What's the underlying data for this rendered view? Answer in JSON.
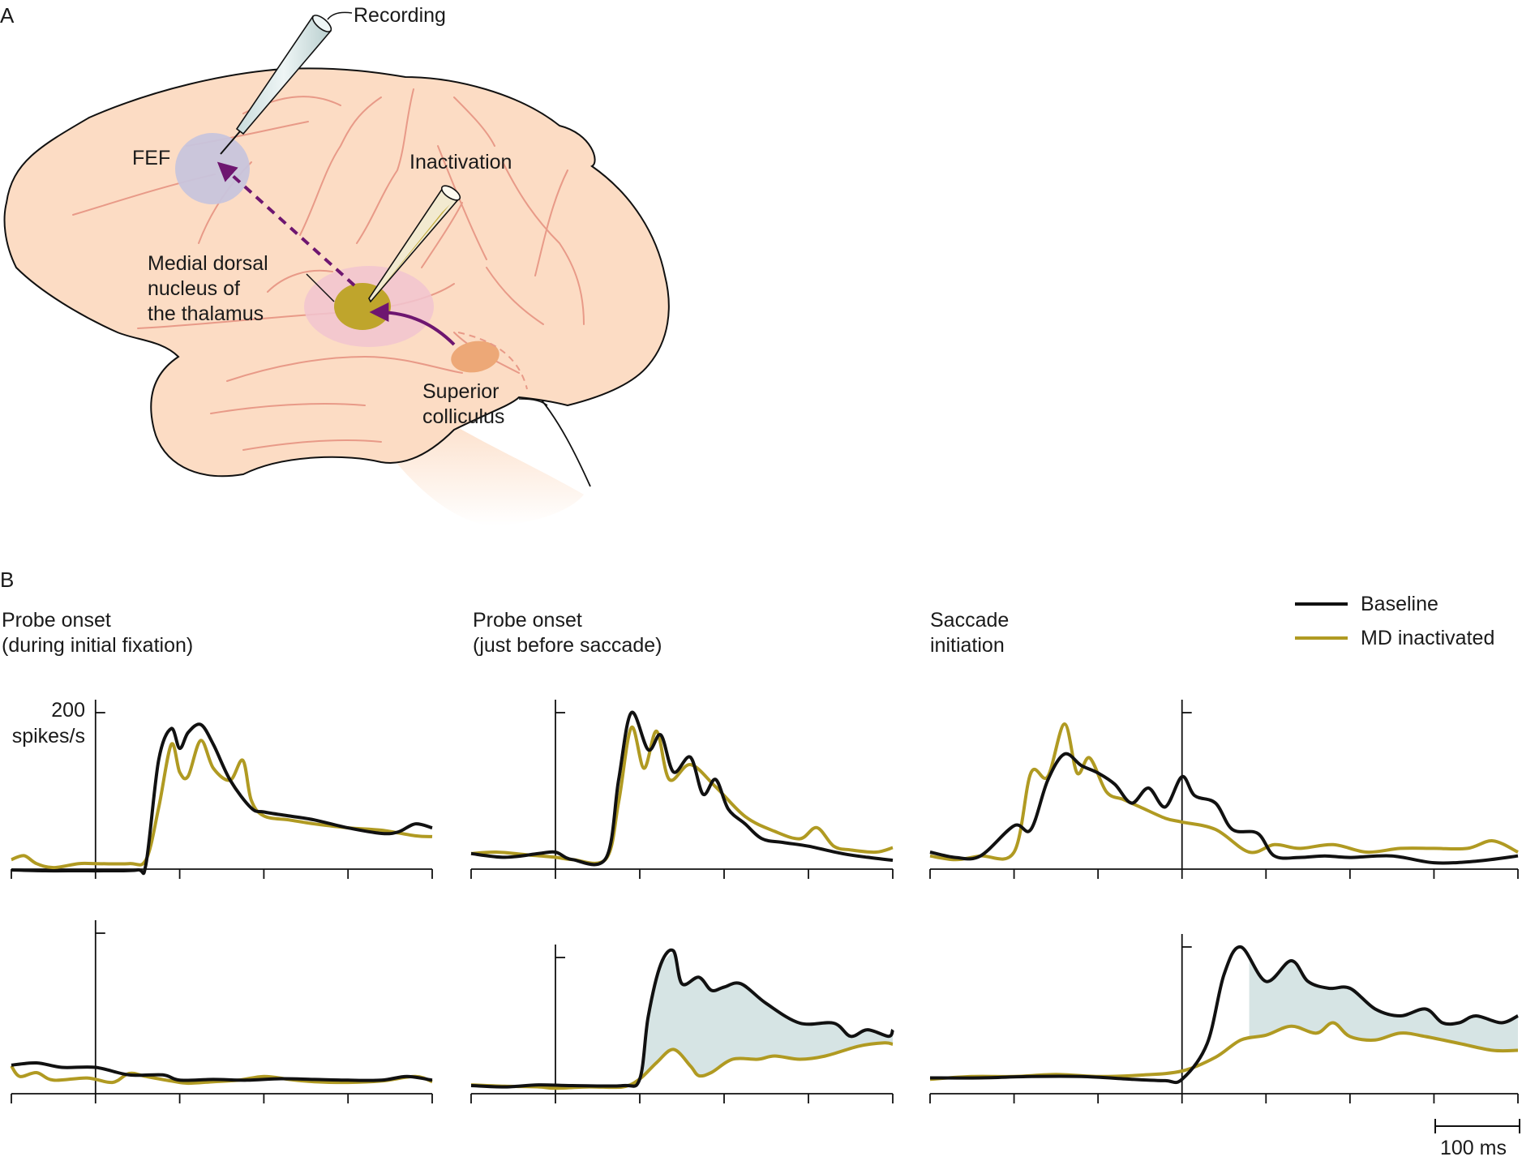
{
  "panel_a": {
    "panel_label": "A",
    "labels": {
      "recording": "Recording",
      "fef": "FEF",
      "inactivation": "Inactivation",
      "md_line1": "Medial dorsal",
      "md_line2": "nucleus of",
      "md_line3": "the thalamus",
      "sc_line1": "Superior",
      "sc_line2": "colliculus"
    },
    "colors": {
      "brain": "#fcdcc4",
      "fef": "#c8c4dc",
      "md_halo": "#f1c4d0",
      "md_core": "#bfa52c",
      "sc": "#eda877",
      "pathway": "#6e1670"
    }
  },
  "panel_b": {
    "panel_label": "B",
    "legend": {
      "baseline": "Baseline",
      "md": "MD inactivated"
    },
    "columns": [
      {
        "title1": "Probe onset",
        "title2": "(during initial fixation)"
      },
      {
        "title1": "Probe onset",
        "title2": "(just before saccade)"
      },
      {
        "title1": "Saccade",
        "title2": "initiation"
      }
    ],
    "scale": {
      "y_value": "200",
      "y_unit": "spikes/s",
      "x_bar": "100 ms"
    },
    "colors": {
      "baseline": "#111111",
      "md": "#b09a22",
      "difference_fill": "#d6e4e4"
    }
  },
  "chart_data": [
    {
      "type": "line",
      "panel": "B1-top",
      "x_unit": "ms",
      "y_unit": "spikes/s",
      "xlim": [
        -100,
        400
      ],
      "ylim": [
        0,
        200
      ],
      "event_ms": 0,
      "series": [
        {
          "name": "Baseline",
          "x": [
            -100,
            -60,
            -20,
            10,
            50,
            60,
            75,
            90,
            100,
            110,
            125,
            140,
            160,
            185,
            200,
            230,
            260,
            300,
            340,
            360,
            380,
            400
          ],
          "y": [
            2,
            1,
            1,
            1,
            2,
            10,
            140,
            180,
            155,
            175,
            185,
            160,
            115,
            80,
            75,
            70,
            65,
            55,
            48,
            50,
            60,
            55
          ]
        },
        {
          "name": "MD inactivated",
          "x": [
            -100,
            -85,
            -70,
            -50,
            -20,
            0,
            40,
            60,
            75,
            90,
            100,
            110,
            125,
            140,
            160,
            175,
            185,
            200,
            230,
            260,
            300,
            340,
            380,
            400
          ],
          "y": [
            15,
            20,
            10,
            5,
            10,
            10,
            10,
            15,
            80,
            160,
            125,
            120,
            165,
            130,
            115,
            140,
            90,
            70,
            65,
            60,
            55,
            52,
            45,
            44
          ]
        }
      ]
    },
    {
      "type": "line",
      "panel": "B2-top",
      "x_unit": "ms",
      "y_unit": "spikes/s",
      "xlim": [
        -100,
        400
      ],
      "ylim": [
        0,
        200
      ],
      "event_ms": 0,
      "series": [
        {
          "name": "Baseline",
          "x": [
            -100,
            -60,
            -20,
            0,
            20,
            60,
            75,
            90,
            110,
            125,
            140,
            160,
            175,
            190,
            205,
            225,
            245,
            270,
            300,
            340,
            370,
            400
          ],
          "y": [
            10,
            5,
            10,
            12,
            2,
            4,
            110,
            200,
            150,
            170,
            120,
            140,
            90,
            110,
            70,
            50,
            30,
            25,
            20,
            10,
            5,
            1
          ]
        },
        {
          "name": "MD inactivated",
          "x": [
            -100,
            -70,
            -30,
            0,
            20,
            60,
            75,
            90,
            105,
            120,
            135,
            160,
            190,
            225,
            260,
            290,
            310,
            330,
            350,
            380,
            400
          ],
          "y": [
            10,
            12,
            8,
            5,
            2,
            3,
            80,
            180,
            125,
            175,
            110,
            130,
            100,
            60,
            40,
            30,
            45,
            20,
            15,
            12,
            18
          ]
        }
      ]
    },
    {
      "type": "line",
      "panel": "B3-top",
      "x_unit": "ms",
      "y_unit": "spikes/s",
      "xlim": [
        -300,
        400
      ],
      "ylim": [
        0,
        200
      ],
      "event_ms": 0,
      "series": [
        {
          "name": "Baseline",
          "x": [
            -300,
            -270,
            -240,
            -200,
            -180,
            -160,
            -140,
            -120,
            -100,
            -80,
            -60,
            -40,
            -20,
            0,
            15,
            40,
            60,
            90,
            110,
            140,
            170,
            200,
            250,
            300,
            350,
            400
          ],
          "y": [
            15,
            8,
            10,
            50,
            45,
            110,
            145,
            130,
            120,
            105,
            80,
            100,
            75,
            115,
            90,
            80,
            45,
            40,
            10,
            8,
            10,
            8,
            10,
            1,
            3,
            10
          ]
        },
        {
          "name": "MD inactivated",
          "x": [
            -300,
            -270,
            -240,
            -200,
            -180,
            -160,
            -140,
            -125,
            -110,
            -90,
            -70,
            -50,
            -20,
            0,
            40,
            80,
            110,
            140,
            180,
            220,
            260,
            300,
            340,
            370,
            400
          ],
          "y": [
            10,
            5,
            10,
            15,
            120,
            115,
            185,
            120,
            140,
            95,
            85,
            75,
            60,
            55,
            45,
            15,
            25,
            20,
            25,
            15,
            20,
            20,
            20,
            30,
            15
          ]
        }
      ]
    },
    {
      "type": "line",
      "panel": "B1-bottom",
      "x_unit": "ms",
      "y_unit": "spikes/s",
      "xlim": [
        -100,
        400
      ],
      "ylim": [
        0,
        200
      ],
      "event_ms": 0,
      "series": [
        {
          "name": "Baseline",
          "x": [
            -100,
            -70,
            -40,
            0,
            40,
            80,
            100,
            140,
            180,
            220,
            260,
            300,
            340,
            370,
            400
          ],
          "y": [
            25,
            28,
            22,
            22,
            12,
            12,
            5,
            6,
            5,
            7,
            6,
            5,
            5,
            10,
            5
          ]
        },
        {
          "name": "MD inactivated",
          "x": [
            -100,
            -90,
            -70,
            -50,
            -10,
            20,
            40,
            60,
            90,
            110,
            140,
            170,
            200,
            230,
            260,
            300,
            340,
            380,
            400
          ],
          "y": [
            24,
            10,
            15,
            5,
            8,
            2,
            14,
            10,
            4,
            1,
            3,
            5,
            10,
            6,
            3,
            2,
            4,
            10,
            3
          ]
        }
      ]
    },
    {
      "type": "line",
      "panel": "B2-bottom",
      "x_unit": "ms",
      "y_unit": "spikes/s",
      "xlim": [
        -100,
        400
      ],
      "ylim": [
        0,
        200
      ],
      "event_ms": 0,
      "series": [
        {
          "name": "Baseline",
          "x": [
            -100,
            -60,
            -20,
            20,
            80,
            100,
            110,
            125,
            140,
            150,
            170,
            185,
            200,
            220,
            250,
            290,
            330,
            350,
            370,
            395,
            400
          ],
          "y": [
            5,
            3,
            6,
            5,
            5,
            15,
            110,
            190,
            210,
            160,
            170,
            150,
            155,
            160,
            130,
            100,
            100,
            80,
            90,
            80,
            90
          ]
        },
        {
          "name": "MD inactivated",
          "x": [
            -100,
            -60,
            -20,
            0,
            40,
            80,
            100,
            120,
            140,
            160,
            170,
            185,
            210,
            240,
            260,
            290,
            320,
            360,
            390,
            400
          ],
          "y": [
            6,
            4,
            3,
            1,
            3,
            3,
            15,
            40,
            60,
            35,
            20,
            25,
            45,
            45,
            50,
            45,
            50,
            65,
            70,
            68
          ]
        }
      ]
    },
    {
      "type": "line",
      "panel": "B3-bottom",
      "x_unit": "ms",
      "y_unit": "spikes/s",
      "xlim": [
        -300,
        400
      ],
      "ylim": [
        0,
        200
      ],
      "event_ms": 0,
      "series": [
        {
          "name": "Baseline",
          "x": [
            -300,
            -240,
            -180,
            -120,
            -60,
            -20,
            0,
            30,
            50,
            70,
            100,
            130,
            150,
            175,
            200,
            230,
            260,
            290,
            310,
            330,
            350,
            380,
            400
          ],
          "y": [
            10,
            10,
            12,
            12,
            8,
            6,
            8,
            60,
            160,
            200,
            150,
            180,
            150,
            140,
            140,
            110,
            100,
            110,
            90,
            90,
            100,
            90,
            100
          ]
        },
        {
          "name": "MD inactivated",
          "x": [
            -300,
            -250,
            -200,
            -150,
            -100,
            -50,
            0,
            40,
            70,
            100,
            130,
            160,
            180,
            200,
            230,
            260,
            290,
            330,
            370,
            400
          ],
          "y": [
            8,
            12,
            12,
            15,
            12,
            14,
            20,
            40,
            65,
            72,
            85,
            75,
            90,
            70,
            65,
            75,
            70,
            60,
            50,
            50
          ]
        }
      ]
    }
  ]
}
